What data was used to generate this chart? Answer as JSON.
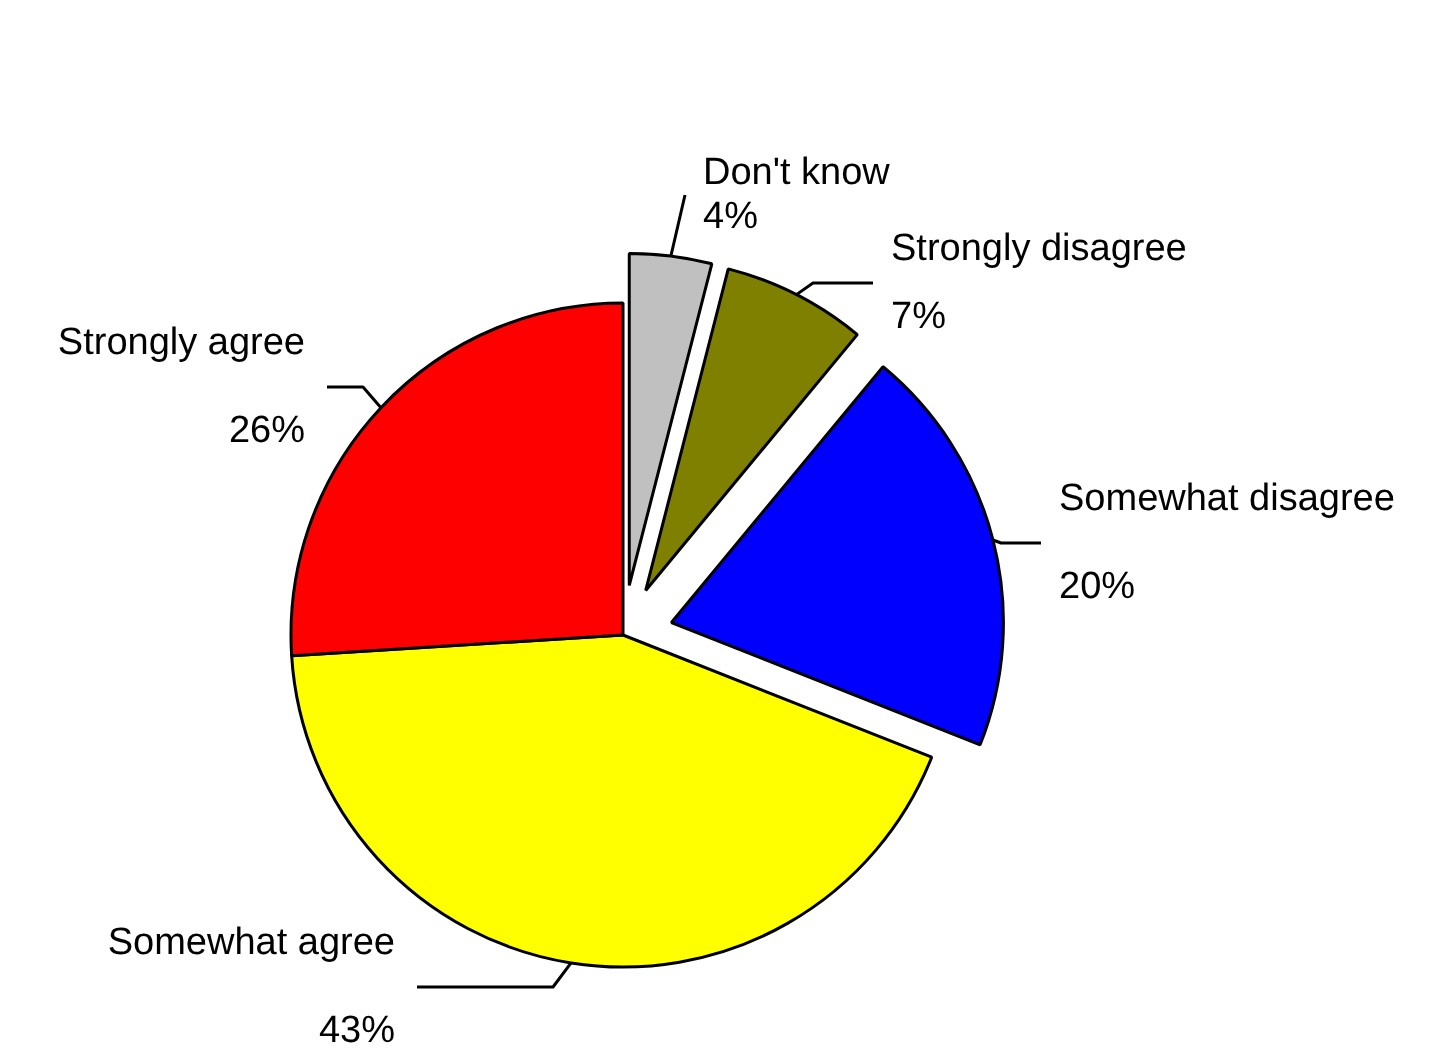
{
  "chart_data": {
    "type": "pie",
    "categories": [
      "Don't know",
      "Strongly disagree",
      "Somewhat disagree",
      "Somewhat agree",
      "Strongly agree"
    ],
    "values": [
      4,
      7,
      20,
      43,
      26
    ],
    "colors": [
      "#c0c0c0",
      "#808000",
      "#0000ff",
      "#ffff00",
      "#ff0000"
    ],
    "value_labels": [
      "4%",
      "7%",
      "20%",
      "43%",
      "26%"
    ]
  }
}
